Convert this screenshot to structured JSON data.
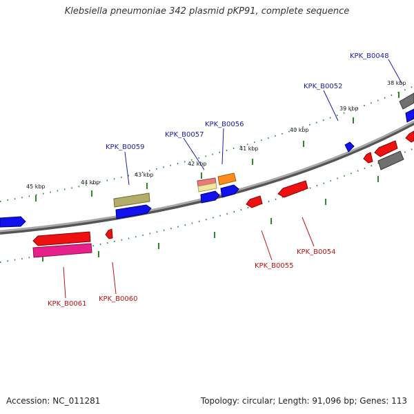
{
  "header": {
    "title": "Klebsiella pneumoniae 342 plasmid pKP91, complete sequence"
  },
  "footer": {
    "accession": "Accession: NC_011281",
    "summary": "Topology: circular; Length: 91,096 bp; Genes: 113"
  },
  "colors": {
    "backbone": "#8c8c8c",
    "tick": "#2a8a2a",
    "plus_label": "#1a1aa6",
    "minus_label": "#bb1111"
  },
  "kbp_labels": [
    "45 kbp",
    "44 kbp",
    "43 kbp",
    "42 kbp",
    "41 kbp",
    "40 kbp",
    "39 kbp",
    "38 kbp"
  ],
  "genes": {
    "plus": [
      "KPK_B0059",
      "KPK_B0057",
      "KPK_B0056",
      "KPK_B0052",
      "KPK_B0048"
    ],
    "minus": [
      "KPK_B0061",
      "KPK_B0060",
      "KPK_B0055",
      "KPK_B0054"
    ]
  }
}
